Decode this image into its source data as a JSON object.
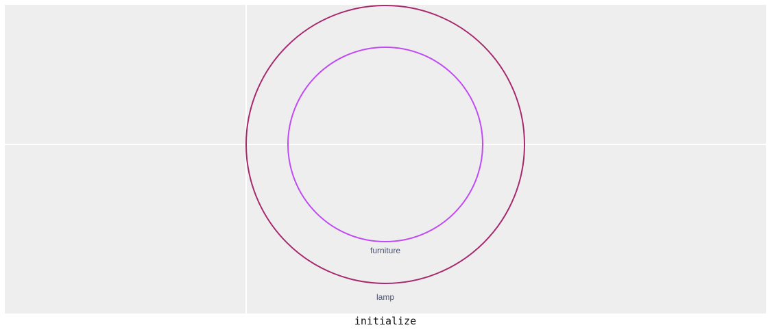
{
  "diagram": {
    "background_color": "#efeeee",
    "nodes": [
      {
        "label": "lamp",
        "color": "#a6296e"
      },
      {
        "label": "furniture",
        "color": "#bf4bf2"
      }
    ]
  },
  "caption": "initialize"
}
